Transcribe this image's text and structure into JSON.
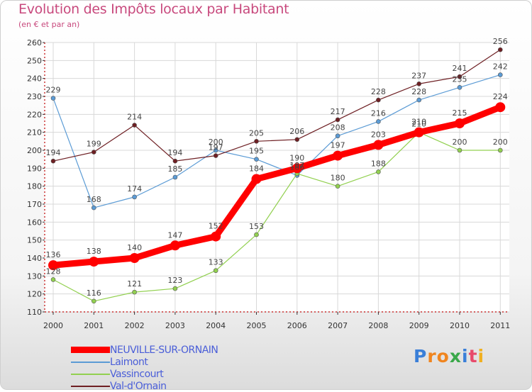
{
  "title": "Evolution des Impôts locaux par Habitant",
  "subtitle": "(en € et par an)",
  "logo": "Proxiti",
  "colors": {
    "title": "#c8497d",
    "legend_text": "#4a5ed8",
    "neuville": "#ff0000",
    "laimont": "#5b9bd5",
    "vassincourt": "#92d050",
    "valdornain": "#6e1f23"
  },
  "chart_data": {
    "type": "line",
    "title": "Evolution des Impôts locaux par Habitant",
    "subtitle": "(en € et par an)",
    "xlabel": "",
    "ylabel": "",
    "categories": [
      "2000",
      "2001",
      "2002",
      "2003",
      "2004",
      "2005",
      "2006",
      "2007",
      "2008",
      "2009",
      "2010",
      "2011"
    ],
    "ylim": [
      110,
      260
    ],
    "yticks": [
      110,
      120,
      130,
      140,
      150,
      160,
      170,
      180,
      190,
      200,
      210,
      220,
      230,
      240,
      250,
      260
    ],
    "grid": true,
    "legend_position": "bottom-left",
    "series": [
      {
        "name": "NEUVILLE-SUR-ORNAIN",
        "color": "#ff0000",
        "highlight": true,
        "values": [
          136,
          138,
          140,
          147,
          152,
          184,
          190,
          197,
          203,
          210,
          215,
          224
        ]
      },
      {
        "name": "Laimont",
        "color": "#5b9bd5",
        "highlight": false,
        "values": [
          229,
          168,
          174,
          185,
          200,
          195,
          186,
          208,
          216,
          228,
          235,
          242
        ]
      },
      {
        "name": "Vassincourt",
        "color": "#92d050",
        "highlight": false,
        "values": [
          128,
          116,
          121,
          123,
          133,
          153,
          187,
          180,
          188,
          210,
          200,
          200
        ]
      },
      {
        "name": "Val-d'Ornain",
        "color": "#6e1f23",
        "highlight": false,
        "values": [
          194,
          199,
          214,
          194,
          197,
          205,
          206,
          217,
          228,
          237,
          241,
          256
        ]
      }
    ]
  }
}
